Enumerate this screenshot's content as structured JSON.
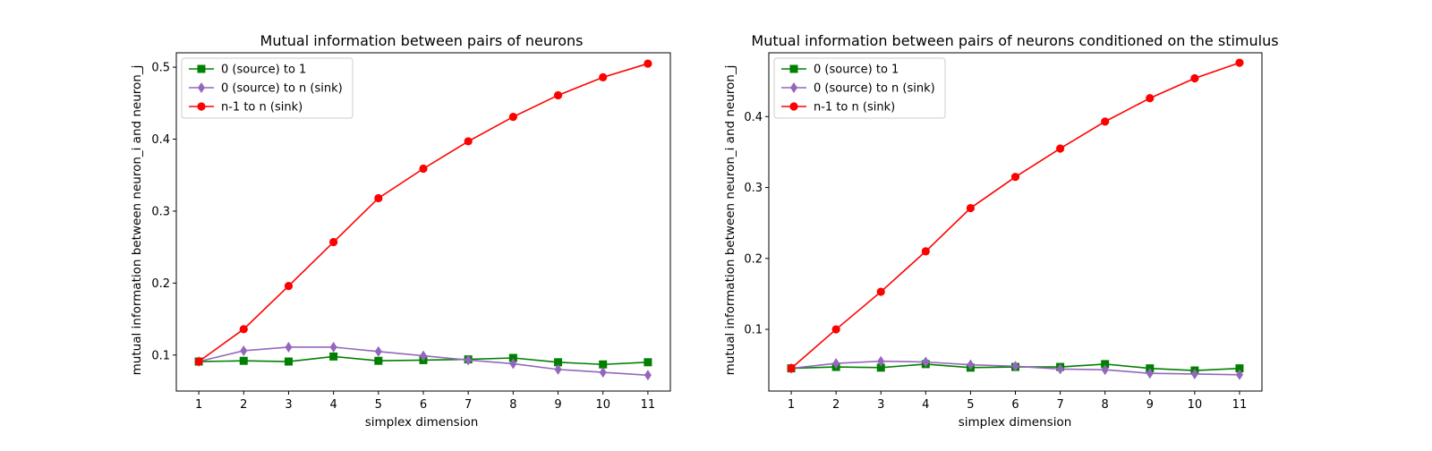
{
  "chart_data": [
    {
      "type": "line",
      "title": "Mutual information between pairs of neurons",
      "xlabel": "simplex dimension",
      "ylabel": "mutual information between neuron_i and neuron_j",
      "x": [
        1,
        2,
        3,
        4,
        5,
        6,
        7,
        8,
        9,
        10,
        11
      ],
      "xlim": [
        0.5,
        11.5
      ],
      "ylim": [
        0.05,
        0.52
      ],
      "yticks": [
        0.1,
        0.2,
        0.3,
        0.4,
        0.5
      ],
      "ytick_labels": [
        "0.1",
        "0.2",
        "0.3",
        "0.4",
        "0.5"
      ],
      "xtick_labels": [
        "1",
        "2",
        "3",
        "4",
        "5",
        "6",
        "7",
        "8",
        "9",
        "10",
        "11"
      ],
      "legend": "top-left",
      "grid": false,
      "series": [
        {
          "name": "0 (source) to 1",
          "color": "#008000",
          "marker": "square",
          "values": [
            0.091,
            0.092,
            0.091,
            0.098,
            0.092,
            0.093,
            0.094,
            0.096,
            0.09,
            0.087,
            0.09
          ]
        },
        {
          "name": "0 (source) to n (sink)",
          "color": "#9467bd",
          "marker": "diamond",
          "values": [
            0.091,
            0.106,
            0.111,
            0.111,
            0.105,
            0.099,
            0.093,
            0.088,
            0.08,
            0.076,
            0.072
          ]
        },
        {
          "name": "n-1 to n (sink)",
          "color": "#ff0000",
          "marker": "circle",
          "values": [
            0.091,
            0.136,
            0.196,
            0.257,
            0.318,
            0.359,
            0.397,
            0.431,
            0.461,
            0.486,
            0.505
          ]
        }
      ]
    },
    {
      "type": "line",
      "title": "Mutual information between pairs of neurons conditioned on the stimulus",
      "xlabel": "simplex dimension",
      "ylabel": "mutual information between neuron_i and neuron_j",
      "x": [
        1,
        2,
        3,
        4,
        5,
        6,
        7,
        8,
        9,
        10,
        11
      ],
      "xlim": [
        0.5,
        11.5
      ],
      "ylim": [
        0.013,
        0.49
      ],
      "yticks": [
        0.1,
        0.2,
        0.3,
        0.4
      ],
      "ytick_labels": [
        "0.1",
        "0.2",
        "0.3",
        "0.4"
      ],
      "xtick_labels": [
        "1",
        "2",
        "3",
        "4",
        "5",
        "6",
        "7",
        "8",
        "9",
        "10",
        "11"
      ],
      "legend": "top-left",
      "grid": false,
      "series": [
        {
          "name": "0 (source) to 1",
          "color": "#008000",
          "marker": "square",
          "values": [
            0.045,
            0.047,
            0.046,
            0.051,
            0.046,
            0.047,
            0.047,
            0.051,
            0.045,
            0.042,
            0.045
          ]
        },
        {
          "name": "0 (source) to n (sink)",
          "color": "#9467bd",
          "marker": "diamond",
          "values": [
            0.045,
            0.052,
            0.055,
            0.054,
            0.05,
            0.048,
            0.044,
            0.043,
            0.038,
            0.037,
            0.036
          ]
        },
        {
          "name": "n-1 to n (sink)",
          "color": "#ff0000",
          "marker": "circle",
          "values": [
            0.045,
            0.1,
            0.153,
            0.21,
            0.271,
            0.315,
            0.355,
            0.393,
            0.426,
            0.454,
            0.476
          ]
        }
      ]
    }
  ]
}
